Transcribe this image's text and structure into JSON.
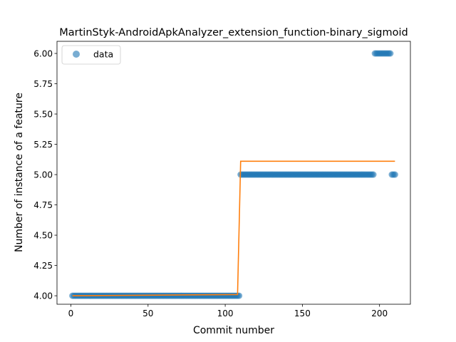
{
  "chart_data": {
    "type": "scatter",
    "title": "MartinStyk-AndroidApkAnalyzer_extension_function-binary_sigmoid",
    "xlabel": "Commit number",
    "ylabel": "Number of instance of a feature",
    "xlim": [
      -9,
      220
    ],
    "ylim": [
      3.93,
      6.1
    ],
    "x_ticks": [
      0,
      50,
      100,
      150,
      200
    ],
    "y_ticks": [
      4.0,
      4.25,
      4.5,
      4.75,
      5.0,
      5.25,
      5.5,
      5.75,
      6.0
    ],
    "y_tick_labels": [
      "4.00",
      "4.25",
      "4.50",
      "4.75",
      "5.00",
      "5.25",
      "5.50",
      "5.75",
      "6.00"
    ],
    "grid": false,
    "legend": {
      "position": "top-left",
      "entries": [
        "data"
      ]
    },
    "colors": {
      "data": "#1f77b4",
      "fit": "#ff7f0e"
    },
    "series": [
      {
        "name": "data",
        "kind": "points",
        "segments": [
          {
            "x_start": 1,
            "x_end": 109,
            "y": 4.0
          },
          {
            "x_start": 110,
            "x_end": 196,
            "y": 5.0
          },
          {
            "x_start": 197,
            "x_end": 207,
            "y": 6.0
          },
          {
            "x_start": 208,
            "x_end": 210,
            "y": 5.0
          }
        ]
      },
      {
        "kind": "line",
        "x": [
          1,
          108,
          110,
          210
        ],
        "y": [
          4.0,
          4.01,
          5.11,
          5.11
        ]
      }
    ]
  }
}
